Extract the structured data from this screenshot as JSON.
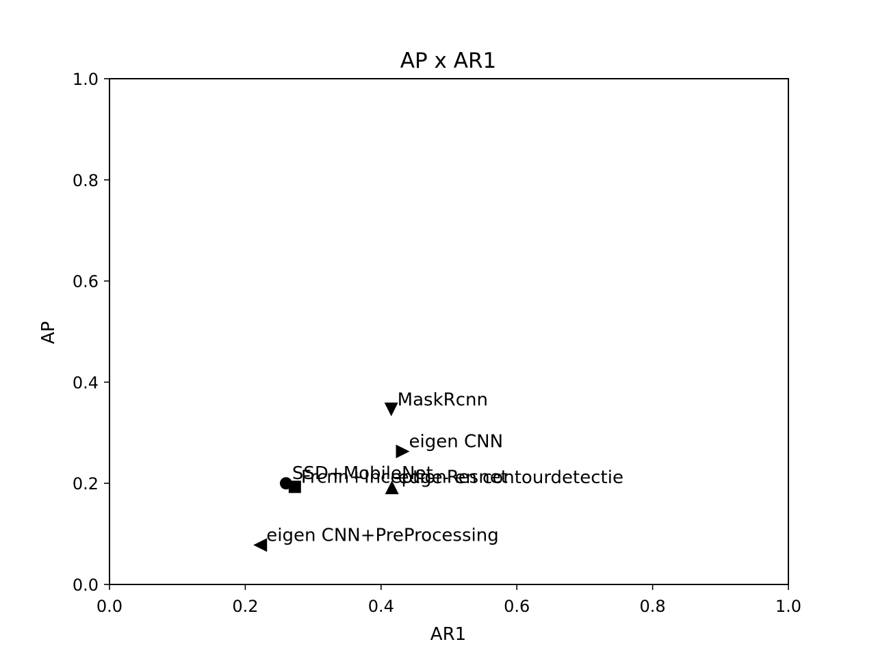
{
  "chart_data": {
    "type": "scatter",
    "title": "AP x AR1",
    "xlabel": "AR1",
    "ylabel": "AP",
    "xlim": [
      0.0,
      1.0
    ],
    "ylim": [
      0.0,
      1.0
    ],
    "xticks": [
      "0.0",
      "0.2",
      "0.4",
      "0.6",
      "0.8",
      "1.0"
    ],
    "yticks": [
      "0.0",
      "0.2",
      "0.4",
      "0.6",
      "0.8",
      "1.0"
    ],
    "grid": false,
    "color": "#000000",
    "points": [
      {
        "label": "SSD+MobileNet",
        "x": 0.26,
        "y": 0.2,
        "marker": "circle"
      },
      {
        "label": "Frcnn+InceptionResnet",
        "x": 0.273,
        "y": 0.193,
        "marker": "square"
      },
      {
        "label": "MaskRcnn",
        "x": 0.415,
        "y": 0.346,
        "marker": "triangle-down"
      },
      {
        "label": "edge- en contourdetectie",
        "x": 0.416,
        "y": 0.192,
        "marker": "triangle-up"
      },
      {
        "label": "eigen CNN",
        "x": 0.432,
        "y": 0.263,
        "marker": "triangle-right"
      },
      {
        "label": "eigen CNN+PreProcessing",
        "x": 0.222,
        "y": 0.078,
        "marker": "triangle-left"
      }
    ]
  }
}
